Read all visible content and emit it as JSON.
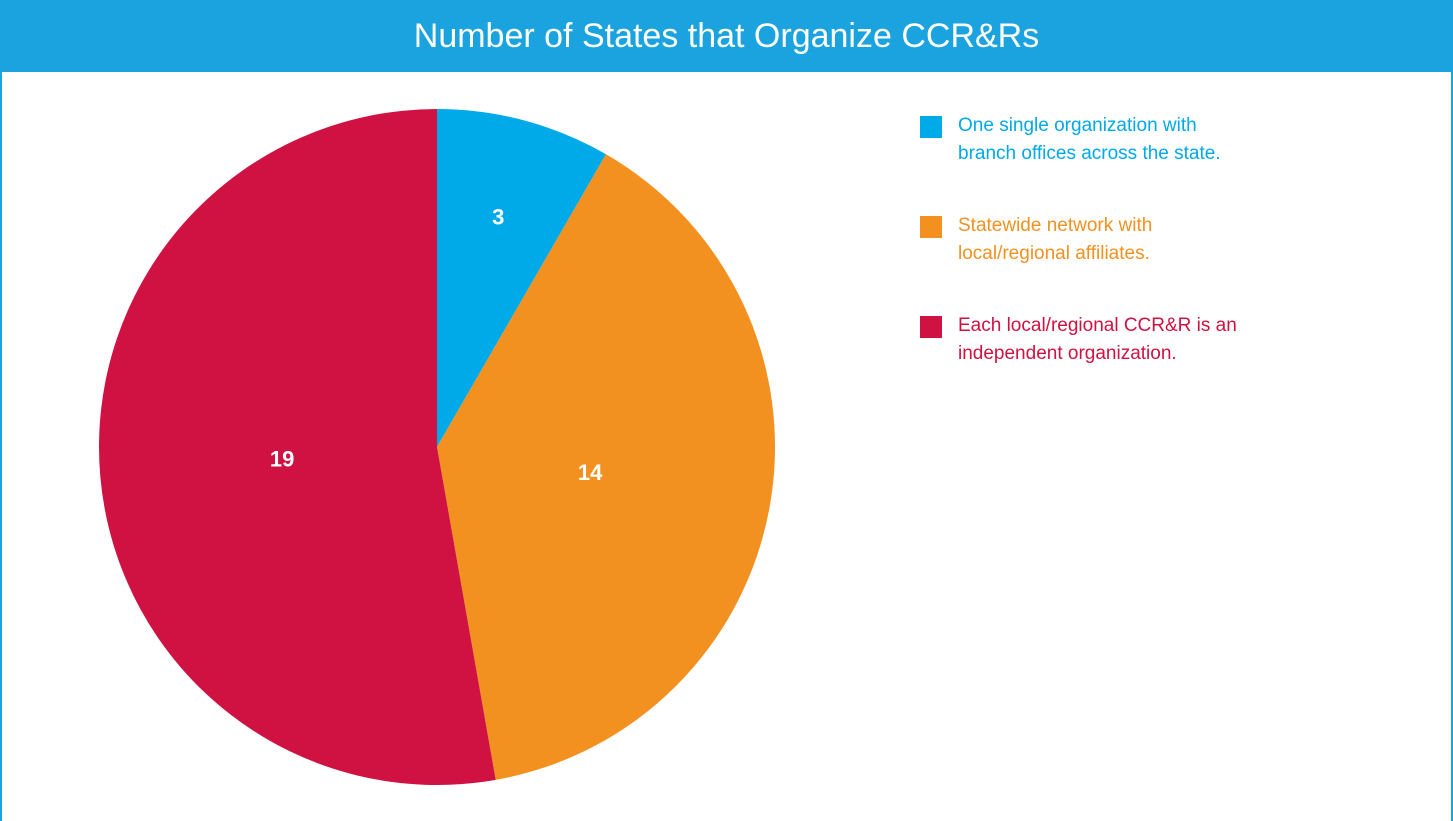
{
  "chart_data": {
    "type": "pie",
    "title": "Number of States that Organize CCR&Rs",
    "categories": [
      "One single organization with branch offices across the state.",
      "Statewide network with local/regional affiliates.",
      "Each local/regional CCR&R is an independent organization."
    ],
    "values": [
      3,
      14,
      19
    ],
    "colors": [
      "#00a9e8",
      "#f29120",
      "#cf1242"
    ],
    "legend": "top-right"
  }
}
